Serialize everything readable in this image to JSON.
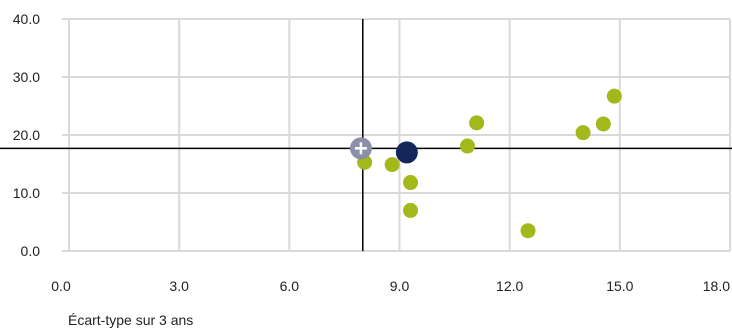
{
  "chart_data": {
    "type": "scatter",
    "xlabel": "Écart-type sur 3 ans",
    "ylabel": "",
    "xlim": [
      0,
      18
    ],
    "ylim": [
      0,
      40
    ],
    "x_ticks": [
      "0.0",
      "3.0",
      "6.0",
      "9.0",
      "12.0",
      "15.0",
      "18.0"
    ],
    "y_ticks": [
      "0.0",
      "10.0",
      "20.0",
      "30.0",
      "40.0"
    ],
    "grid": true,
    "reference_lines": {
      "x": 8.0,
      "y": 17.7
    },
    "colors": {
      "peers": "#a3b81a",
      "highlight": "#14275a",
      "benchmark": "#8c8fa8",
      "grid": "#d9d9d9",
      "reference": "#000000"
    },
    "series": [
      {
        "role": "peers",
        "points": [
          {
            "x": 8.05,
            "y": 15.3
          },
          {
            "x": 8.8,
            "y": 14.9
          },
          {
            "x": 9.3,
            "y": 11.8
          },
          {
            "x": 9.3,
            "y": 7.0
          },
          {
            "x": 10.85,
            "y": 18.1
          },
          {
            "x": 11.1,
            "y": 22.1
          },
          {
            "x": 12.5,
            "y": 3.5
          },
          {
            "x": 14.0,
            "y": 20.4
          },
          {
            "x": 14.55,
            "y": 21.9
          },
          {
            "x": 14.85,
            "y": 26.7
          }
        ]
      },
      {
        "role": "highlight",
        "points": [
          {
            "x": 9.2,
            "y": 17.0
          }
        ]
      },
      {
        "role": "benchmark",
        "points": [
          {
            "x": 7.95,
            "y": 17.7
          }
        ]
      }
    ]
  }
}
